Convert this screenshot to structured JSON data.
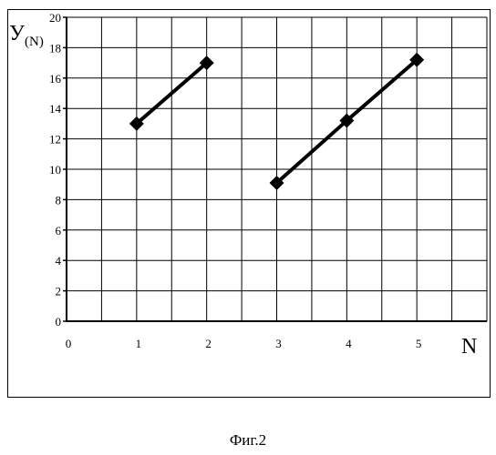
{
  "caption": "Фиг.2",
  "chart_data": {
    "type": "line",
    "xlabel": "N",
    "ylabel": "У(N)",
    "ylabel_main": "У",
    "ylabel_sub": "(N)",
    "xlim": [
      0,
      6
    ],
    "ylim": [
      0,
      20
    ],
    "x_ticks": [
      0,
      1,
      2,
      3,
      4,
      5
    ],
    "y_ticks": [
      0,
      2,
      4,
      6,
      8,
      10,
      12,
      14,
      16,
      18,
      20
    ],
    "grid": true,
    "legend": "none",
    "series": [
      {
        "x": [
          1,
          2
        ],
        "y": [
          13,
          17
        ],
        "color": "#000000",
        "marker": "diamond"
      },
      {
        "x": [
          3,
          4,
          5
        ],
        "y": [
          9.1,
          13.2,
          17.2
        ],
        "color": "#000000",
        "marker": "diamond"
      }
    ]
  }
}
